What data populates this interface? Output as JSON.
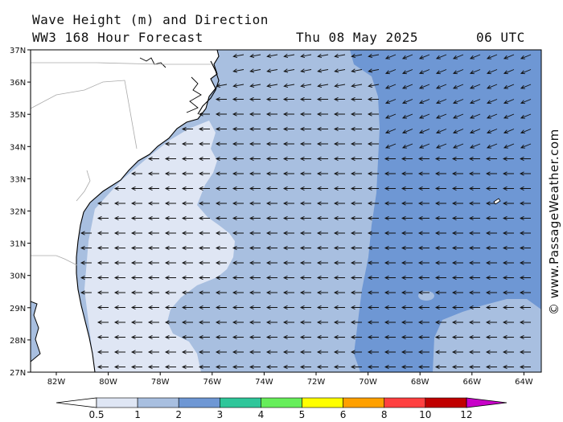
{
  "header": {
    "title": "Wave Height (m) and Direction",
    "model": "WW3 168 Hour Forecast",
    "date": "Thu 08 May 2025",
    "time": "06 UTC"
  },
  "map": {
    "lat_labels": [
      "37N",
      "36N",
      "35N",
      "34N",
      "33N",
      "32N",
      "31N",
      "30N",
      "29N",
      "28N",
      "27N"
    ],
    "lon_labels": [
      "82W",
      "80W",
      "78W",
      "76W",
      "74W",
      "72W",
      "70W",
      "68W",
      "66W",
      "64W"
    ],
    "wave_direction": "arrows point toward the west (waves moving westward), slight north-westward tilt in the north-east",
    "colors": {
      "land": "#ffffff",
      "band_0_5_1": "#dfe6f4",
      "band_1_2": "#a8bfe0",
      "band_2_3": "#6e97d4"
    }
  },
  "legend": {
    "labels": [
      "0.5",
      "1",
      "2",
      "3",
      "4",
      "5",
      "6",
      "8",
      "10",
      "12"
    ],
    "colors": [
      "#dfe6f4",
      "#a8bfe0",
      "#6e97d4",
      "#2fc69a",
      "#66ee5a",
      "#ffff00",
      "#ffa000",
      "#ff4040",
      "#c00000",
      "#c800c8"
    ]
  },
  "credit": "© www.PassageWeather.com"
}
